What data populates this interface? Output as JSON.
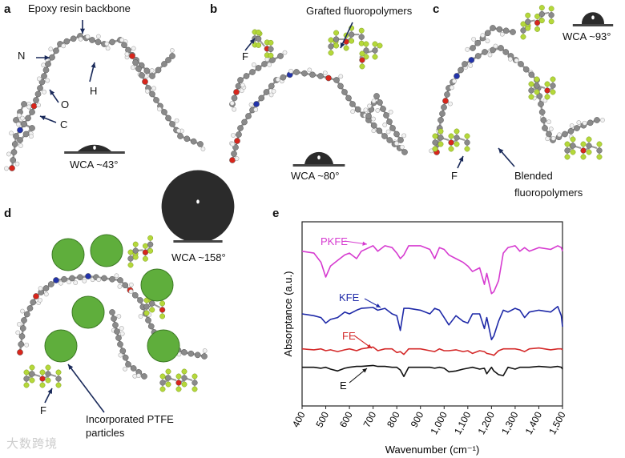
{
  "panels": {
    "a": {
      "letter": "a",
      "title": "Epoxy resin backbone",
      "atoms": {
        "N": "N",
        "O": "O",
        "C": "C",
        "H": "H"
      },
      "wca": "WCA ~43°",
      "contact_angle_deg": 43
    },
    "b": {
      "letter": "b",
      "title": "Grafted fluoropolymers",
      "atom_F": "F",
      "wca": "WCA ~80°",
      "contact_angle_deg": 80
    },
    "c": {
      "letter": "c",
      "atom_F": "F",
      "label_line1": "Blended",
      "label_line2": "fluoropolymers",
      "wca": "WCA ~93°",
      "contact_angle_deg": 93
    },
    "d": {
      "letter": "d",
      "atom_F": "F",
      "label_line1": "Incorporated PTFE",
      "label_line2": "particles",
      "wca": "WCA ~158°",
      "contact_angle_deg": 158
    },
    "e": {
      "letter": "e"
    }
  },
  "watermark": "大数跨境",
  "colors": {
    "carbon": "#8a8a8a",
    "hydrogen": "#f2f2f2",
    "oxygen": "#d8261c",
    "nitrogen": "#2233aa",
    "fluorine": "#b5d83a",
    "ptfe": "#5fae3c",
    "PKFE": "#d63bd0",
    "KFE": "#1f2aa8",
    "FE": "#d42a2a",
    "E": "#111111"
  },
  "chart_data": {
    "type": "line",
    "title": "",
    "xlabel": "Wavenumber (cm⁻¹)",
    "ylabel": "Absorptance (a.u.)",
    "xlim": [
      400,
      1500
    ],
    "ylim": [
      0,
      10
    ],
    "xticks": [
      "400",
      "500",
      "600",
      "700",
      "800",
      "900",
      "1,000",
      "1,100",
      "1,200",
      "1,300",
      "1,400",
      "1,500"
    ],
    "xtick_values": [
      400,
      500,
      600,
      700,
      800,
      900,
      1000,
      1100,
      1200,
      1300,
      1400,
      1500
    ],
    "grid": false,
    "legend": "inline-labels",
    "x": [
      400,
      450,
      480,
      500,
      520,
      550,
      580,
      600,
      630,
      650,
      700,
      720,
      750,
      780,
      800,
      815,
      830,
      850,
      900,
      940,
      960,
      980,
      1000,
      1020,
      1050,
      1080,
      1100,
      1120,
      1150,
      1170,
      1180,
      1200,
      1210,
      1230,
      1250,
      1270,
      1300,
      1320,
      1340,
      1360,
      1400,
      1450,
      1480,
      1495,
      1500
    ],
    "series": [
      {
        "name": "PKFE",
        "values": [
          8.4,
          8.3,
          7.8,
          7.0,
          7.6,
          7.9,
          8.2,
          8.3,
          8.0,
          8.4,
          8.7,
          8.4,
          8.7,
          8.6,
          8.3,
          8.0,
          8.2,
          8.7,
          8.7,
          8.5,
          8.0,
          8.6,
          8.5,
          8.2,
          8.0,
          7.8,
          7.6,
          7.3,
          7.5,
          6.6,
          7.2,
          6.1,
          6.2,
          6.8,
          8.3,
          8.6,
          8.7,
          8.4,
          8.6,
          8.4,
          8.6,
          8.5,
          8.7,
          8.6,
          8.4
        ]
      },
      {
        "name": "KFE",
        "values": [
          5.0,
          4.9,
          4.8,
          4.5,
          4.7,
          4.8,
          5.1,
          5.0,
          5.2,
          5.3,
          5.35,
          5.2,
          5.3,
          5.0,
          4.9,
          4.1,
          5.3,
          5.3,
          5.2,
          5.0,
          5.3,
          5.2,
          4.8,
          4.4,
          4.9,
          4.6,
          4.5,
          5.0,
          5.0,
          4.2,
          4.8,
          3.6,
          3.8,
          4.6,
          5.2,
          5.1,
          5.3,
          5.2,
          4.8,
          5.1,
          5.2,
          5.1,
          5.4,
          4.9,
          4.3
        ]
      },
      {
        "name": "FE",
        "values": [
          3.1,
          3.05,
          3.1,
          3.0,
          3.05,
          2.95,
          3.05,
          3.1,
          3.0,
          3.1,
          3.2,
          3.0,
          3.1,
          3.1,
          2.9,
          2.95,
          2.8,
          3.1,
          3.1,
          3.0,
          2.95,
          3.1,
          3.0,
          3.0,
          3.05,
          2.95,
          3.0,
          2.85,
          3.0,
          2.95,
          2.85,
          2.8,
          2.75,
          3.0,
          3.1,
          3.1,
          3.1,
          3.05,
          2.95,
          3.1,
          3.15,
          3.05,
          3.1,
          3.1,
          3.05
        ]
      },
      {
        "name": "E",
        "values": [
          2.1,
          2.1,
          2.05,
          2.1,
          2.0,
          1.9,
          2.05,
          2.1,
          2.15,
          2.15,
          2.2,
          2.15,
          2.15,
          2.1,
          2.1,
          1.95,
          1.6,
          2.1,
          2.1,
          2.1,
          2.05,
          2.1,
          2.05,
          1.85,
          1.9,
          2.0,
          2.05,
          2.1,
          2.0,
          2.05,
          1.75,
          2.1,
          1.9,
          1.7,
          1.65,
          2.1,
          2.0,
          2.1,
          2.1,
          2.1,
          2.15,
          2.1,
          2.15,
          2.1,
          2.0
        ]
      }
    ]
  }
}
